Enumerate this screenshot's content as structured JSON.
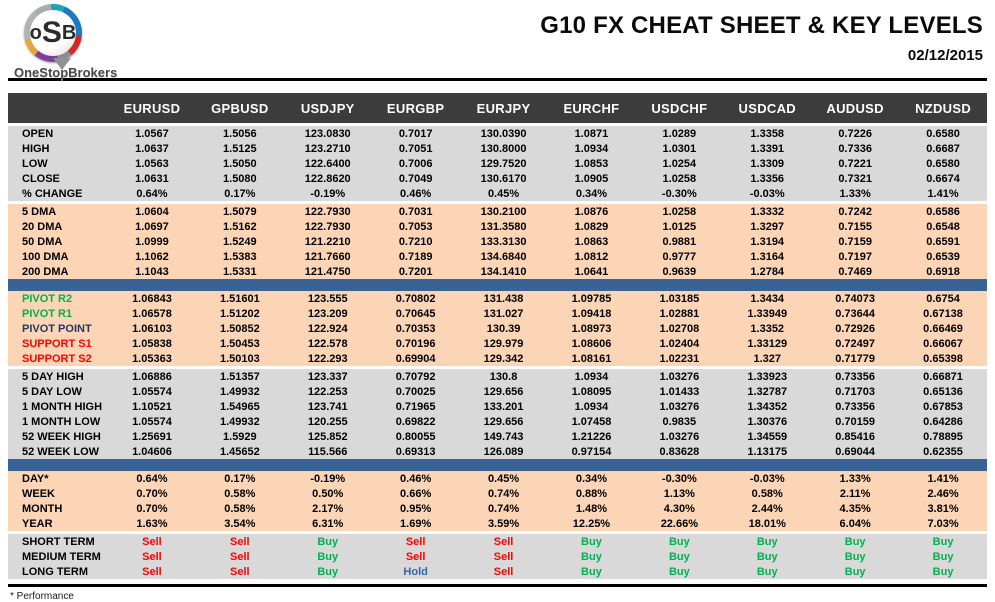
{
  "brand": {
    "logo_text_o": "o",
    "logo_text_s": "S",
    "logo_text_b": "B",
    "logo_caption": "OneStopBrokers"
  },
  "header": {
    "title": "G10 FX CHEAT SHEET & KEY LEVELS",
    "date": "02/12/2015"
  },
  "colors": {
    "header_bar": "#3c3c3c",
    "gray_block": "#d9d9d9",
    "peach_block": "#fbd5b5",
    "separator_blue": "#3a6395",
    "buy_green": "#00b050",
    "sell_red": "#ff0000",
    "hold_blue": "#3465a8",
    "pivot_navy": "#1f3864"
  },
  "table": {
    "columns": [
      "EURUSD",
      "GPBUSD",
      "USDJPY",
      "EURGBP",
      "EURJPY",
      "EURCHF",
      "USDCHF",
      "USDCAD",
      "AUDUSD",
      "NZDUSD"
    ],
    "blocks": [
      {
        "id": "ohlc",
        "bg": "gray",
        "separator_before": "gap",
        "rows": [
          {
            "label": "OPEN",
            "values": [
              "1.0567",
              "1.5056",
              "123.0830",
              "0.7017",
              "130.0390",
              "1.0871",
              "1.0289",
              "1.3358",
              "0.7226",
              "0.6580"
            ]
          },
          {
            "label": "HIGH",
            "values": [
              "1.0637",
              "1.5125",
              "123.2710",
              "0.7051",
              "130.8000",
              "1.0934",
              "1.0301",
              "1.3391",
              "0.7336",
              "0.6687"
            ]
          },
          {
            "label": "LOW",
            "values": [
              "1.0563",
              "1.5050",
              "122.6400",
              "0.7006",
              "129.7520",
              "1.0853",
              "1.0254",
              "1.3309",
              "0.7221",
              "0.6580"
            ]
          },
          {
            "label": "CLOSE",
            "values": [
              "1.0631",
              "1.5080",
              "122.8620",
              "0.7049",
              "130.6170",
              "1.0905",
              "1.0258",
              "1.3356",
              "0.7321",
              "0.6674"
            ]
          },
          {
            "label": "% CHANGE",
            "values": [
              "0.64%",
              "0.17%",
              "-0.19%",
              "0.46%",
              "0.45%",
              "0.34%",
              "-0.30%",
              "-0.03%",
              "1.33%",
              "1.41%"
            ]
          }
        ]
      },
      {
        "id": "dma",
        "bg": "peach",
        "separator_before": "gap",
        "rows": [
          {
            "label": "5 DMA",
            "values": [
              "1.0604",
              "1.5079",
              "122.7930",
              "0.7031",
              "130.2100",
              "1.0876",
              "1.0258",
              "1.3332",
              "0.7242",
              "0.6586"
            ]
          },
          {
            "label": "20 DMA",
            "values": [
              "1.0697",
              "1.5162",
              "122.7930",
              "0.7053",
              "131.3580",
              "1.0829",
              "1.0125",
              "1.3297",
              "0.7155",
              "0.6548"
            ]
          },
          {
            "label": "50 DMA",
            "values": [
              "1.0999",
              "1.5249",
              "121.2210",
              "0.7210",
              "133.3130",
              "1.0863",
              "0.9881",
              "1.3194",
              "0.7159",
              "0.6591"
            ]
          },
          {
            "label": "100 DMA",
            "values": [
              "1.1062",
              "1.5383",
              "121.7660",
              "0.7189",
              "134.6840",
              "1.0812",
              "0.9777",
              "1.3164",
              "0.7197",
              "0.6539"
            ]
          },
          {
            "label": "200 DMA",
            "values": [
              "1.1043",
              "1.5331",
              "121.4750",
              "0.7201",
              "134.1410",
              "1.0641",
              "0.9639",
              "1.2784",
              "0.7469",
              "0.6918"
            ]
          }
        ]
      },
      {
        "id": "pivots",
        "bg": "peach",
        "separator_before": "blue",
        "rows": [
          {
            "label": "PIVOT R2",
            "label_color": "green",
            "values": [
              "1.06843",
              "1.51601",
              "123.555",
              "0.70802",
              "131.438",
              "1.09785",
              "1.03185",
              "1.3434",
              "0.74073",
              "0.6754"
            ]
          },
          {
            "label": "PIVOT R1",
            "label_color": "green",
            "values": [
              "1.06578",
              "1.51202",
              "123.209",
              "0.70645",
              "131.027",
              "1.09418",
              "1.02881",
              "1.33949",
              "0.73644",
              "0.67138"
            ]
          },
          {
            "label": "PIVOT POINT",
            "label_color": "navy",
            "values": [
              "1.06103",
              "1.50852",
              "122.924",
              "0.70353",
              "130.39",
              "1.08973",
              "1.02708",
              "1.3352",
              "0.72926",
              "0.66469"
            ]
          },
          {
            "label": "SUPPORT S1",
            "label_color": "red",
            "values": [
              "1.05838",
              "1.50453",
              "122.578",
              "0.70196",
              "129.979",
              "1.08606",
              "1.02404",
              "1.33129",
              "0.72497",
              "0.66067"
            ]
          },
          {
            "label": "SUPPORT S2",
            "label_color": "red",
            "values": [
              "1.05363",
              "1.50103",
              "122.293",
              "0.69904",
              "129.342",
              "1.08161",
              "1.02231",
              "1.327",
              "0.71779",
              "0.65398"
            ]
          }
        ]
      },
      {
        "id": "ranges",
        "bg": "gray",
        "separator_before": "gap",
        "rows": [
          {
            "label": "5 DAY HIGH",
            "values": [
              "1.06886",
              "1.51357",
              "123.337",
              "0.70792",
              "130.8",
              "1.0934",
              "1.03276",
              "1.33923",
              "0.73356",
              "0.66871"
            ]
          },
          {
            "label": "5 DAY LOW",
            "values": [
              "1.05574",
              "1.49932",
              "122.253",
              "0.70025",
              "129.656",
              "1.08095",
              "1.01433",
              "1.32787",
              "0.71703",
              "0.65136"
            ]
          },
          {
            "label": "1 MONTH HIGH",
            "values": [
              "1.10521",
              "1.54965",
              "123.741",
              "0.71965",
              "133.201",
              "1.0934",
              "1.03276",
              "1.34352",
              "0.73356",
              "0.67853"
            ]
          },
          {
            "label": "1 MONTH LOW",
            "values": [
              "1.05574",
              "1.49932",
              "120.255",
              "0.69822",
              "129.656",
              "1.07458",
              "0.9835",
              "1.30376",
              "0.70159",
              "0.64286"
            ]
          },
          {
            "label": "52 WEEK HIGH",
            "values": [
              "1.25691",
              "1.5929",
              "125.852",
              "0.80055",
              "149.743",
              "1.21226",
              "1.03276",
              "1.34559",
              "0.85416",
              "0.78895"
            ]
          },
          {
            "label": "52 WEEK LOW",
            "values": [
              "1.04606",
              "1.45652",
              "115.566",
              "0.69313",
              "126.089",
              "0.97154",
              "0.83628",
              "1.13175",
              "0.69044",
              "0.62355"
            ]
          }
        ]
      },
      {
        "id": "performance",
        "bg": "peach",
        "separator_before": "blue",
        "rows": [
          {
            "label": "DAY*",
            "values": [
              "0.64%",
              "0.17%",
              "-0.19%",
              "0.46%",
              "0.45%",
              "0.34%",
              "-0.30%",
              "-0.03%",
              "1.33%",
              "1.41%"
            ]
          },
          {
            "label": "WEEK",
            "values": [
              "0.70%",
              "0.58%",
              "0.50%",
              "0.66%",
              "0.74%",
              "0.88%",
              "1.13%",
              "0.58%",
              "2.11%",
              "2.46%"
            ]
          },
          {
            "label": "MONTH",
            "values": [
              "0.70%",
              "0.58%",
              "2.17%",
              "0.95%",
              "0.74%",
              "1.48%",
              "4.30%",
              "2.44%",
              "4.35%",
              "3.81%"
            ]
          },
          {
            "label": "YEAR",
            "values": [
              "1.63%",
              "3.54%",
              "6.31%",
              "1.69%",
              "3.59%",
              "12.25%",
              "22.66%",
              "18.01%",
              "6.04%",
              "7.03%"
            ]
          }
        ]
      },
      {
        "id": "signals",
        "bg": "gray",
        "separator_before": "gap",
        "rows": [
          {
            "label": "SHORT TERM",
            "values": [
              "Sell",
              "Sell",
              "Buy",
              "Sell",
              "Sell",
              "Buy",
              "Buy",
              "Buy",
              "Buy",
              "Buy"
            ]
          },
          {
            "label": "MEDIUM TERM",
            "values": [
              "Sell",
              "Sell",
              "Buy",
              "Sell",
              "Sell",
              "Buy",
              "Buy",
              "Buy",
              "Buy",
              "Buy"
            ]
          },
          {
            "label": "LONG TERM",
            "values": [
              "Sell",
              "Sell",
              "Buy",
              "Hold",
              "Sell",
              "Buy",
              "Buy",
              "Buy",
              "Buy",
              "Buy"
            ]
          }
        ]
      }
    ]
  },
  "footer": {
    "note": "* Performance"
  }
}
